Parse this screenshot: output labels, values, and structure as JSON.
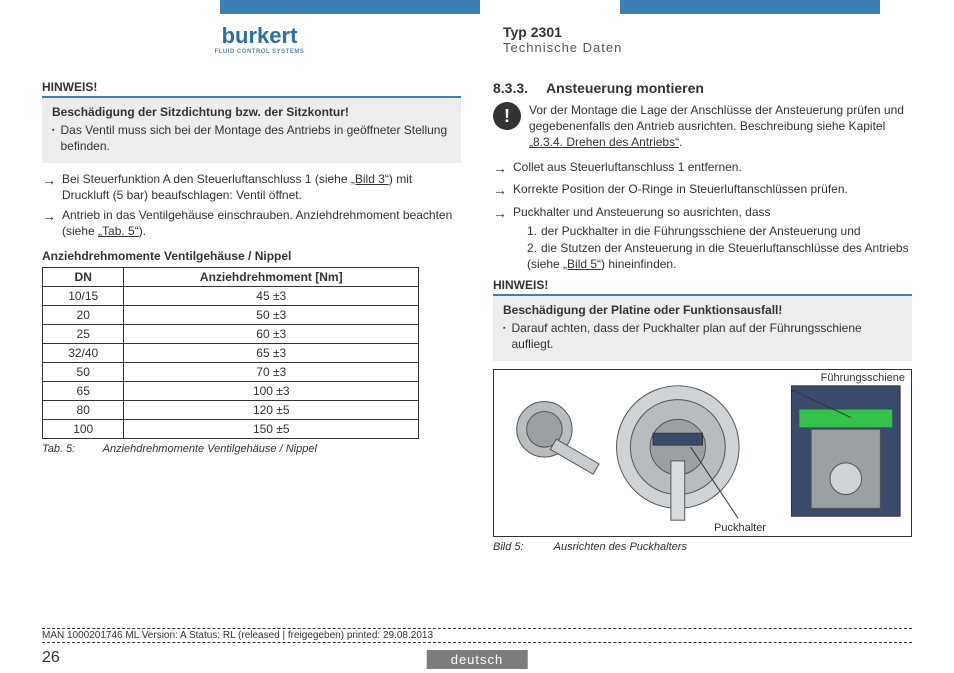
{
  "header": {
    "logo": {
      "text": "burkert",
      "sub": "FLUID CONTROL SYSTEMS"
    },
    "typ": "Typ 2301",
    "sub": "Technische Daten"
  },
  "left": {
    "hinweis_head": "HINWEIS!",
    "hinweis_bold": "Beschädigung der Sitzdichtung bzw. der Sitzkontur!",
    "hinweis_bullet": "Das Ventil muss sich bei der Montage des Antriebs in geöffne­ter Stellung befinden.",
    "arrow1_a": "Bei Steuerfunktion A den Steuerluftanschluss 1 (siehe ",
    "arrow1_link": "„Bild 3“",
    "arrow1_b": ") mit Druckluft (5 bar) beaufschlagen: Ventil öffnet.",
    "arrow2_a": "Antrieb in das Ventilgehäuse einschrauben. Anziehdrehmoment beachten (siehe ",
    "arrow2_link": "„Tab. 5“",
    "arrow2_b": ").",
    "table_title": "Anziehdrehmomente Ventilgehäuse / Nippel",
    "table_h1": "DN",
    "table_h2": "Anziehdrehmoment [Nm]",
    "rows": [
      {
        "dn": "10/15",
        "nm": "45 ±3"
      },
      {
        "dn": "20",
        "nm": "50 ±3"
      },
      {
        "dn": "25",
        "nm": "60 ±3"
      },
      {
        "dn": "32/40",
        "nm": "65 ±3"
      },
      {
        "dn": "50",
        "nm": "70 ±3"
      },
      {
        "dn": "65",
        "nm": "100 ±3"
      },
      {
        "dn": "80",
        "nm": "120 ±5"
      },
      {
        "dn": "100",
        "nm": "150 ±5"
      }
    ],
    "tab_caption_lbl": "Tab. 5:",
    "tab_caption_txt": "Anziehdrehmomente Ventilgehäuse / Nippel"
  },
  "right": {
    "section_num": "8.3.3.",
    "section_title": "Ansteuerung montieren",
    "alert_a": "Vor der Montage die Lage der Anschlüsse der Ansteuerung prüfen und gegebenenfalls den Antrieb ausrichten. Beschreibung siehe Kapitel ",
    "alert_link": "„8.3.4. Drehen des Antriebs“",
    "alert_b": ".",
    "arrow1": "Collet aus Steuerluftanschluss 1 entfernen.",
    "arrow2": "Korrekte Position der O-Ringe in Steuerluftanschlüssen prüfen.",
    "arrow3": "Puckhalter und Ansteuerung so ausrichten, dass",
    "li1": "der Puckhalter in die Führungsschiene der Ansteuerung und",
    "li2_a": "die Stutzen der Ansteuerung in die Steuerluftanschlüsse des Antriebs (siehe ",
    "li2_link": "„Bild 5“",
    "li2_b": ") hineinfinden.",
    "hinweis_head": "HINWEIS!",
    "hinweis_bold": "Beschädigung der Platine oder Funktionsausfall!",
    "hinweis_bullet": "Darauf achten, dass der Puckhalter plan auf der Führungs­schiene aufliegt.",
    "fig_label1": "Führungsschiene",
    "fig_label2": "Puckhalter",
    "fig_caption_lbl": "Bild 5:",
    "fig_caption_txt": "Ausrichten des Puckhalters"
  },
  "footer": {
    "line": "MAN 1000201746 ML Version: A Status: RL (released | freigegeben) printed: 29.08.2013",
    "page": "26",
    "lang": "deutsch"
  },
  "colors": {
    "accent": "#3b80b4",
    "logo": "#2a6fa5"
  }
}
